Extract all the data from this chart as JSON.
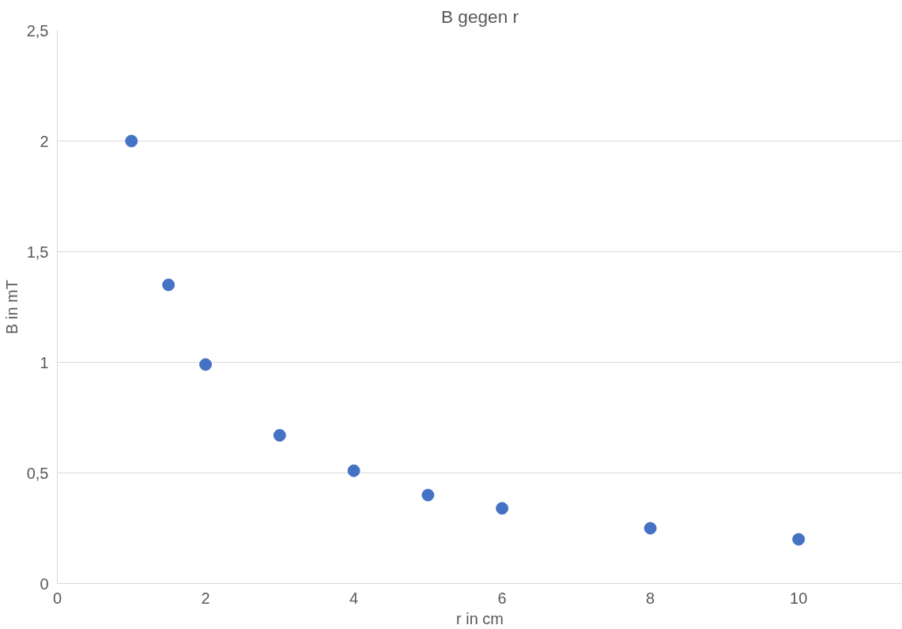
{
  "chart_data": {
    "type": "scatter",
    "title": "B gegen r",
    "xlabel": "r in cm",
    "ylabel": "B in mT",
    "x": [
      1,
      1.5,
      2,
      3,
      4,
      5,
      6,
      8,
      10
    ],
    "series": [
      {
        "color": "#4472c4",
        "values": [
          2.0,
          1.35,
          0.99,
          0.67,
          0.51,
          0.4,
          0.34,
          0.25,
          0.2
        ]
      }
    ],
    "xlim": [
      0,
      11.4
    ],
    "xticks": [
      0,
      2,
      4,
      6,
      8,
      10
    ],
    "ylim": [
      0,
      2.5
    ],
    "yticks": [
      0,
      {
        "value": 0.5,
        "label": "0,5"
      },
      1,
      {
        "value": 1.5,
        "label": "1,5"
      },
      2,
      {
        "value": 2.5,
        "label": "2,5"
      }
    ],
    "grid": "y",
    "marker": "circle"
  }
}
